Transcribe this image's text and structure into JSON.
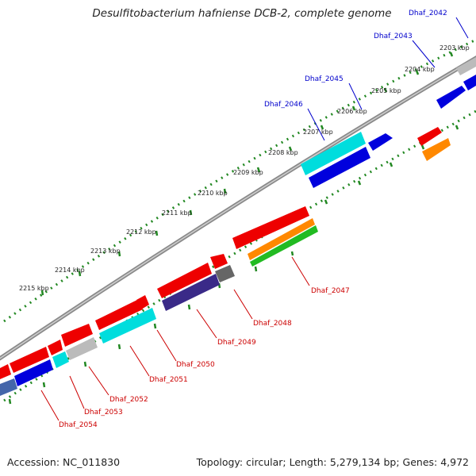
{
  "title": "Desulfitobacterium hafniense DCB-2, complete genome",
  "footer": {
    "accession": "Accession: NC_011830",
    "topology": "Topology: circular; Length: 5,279,134 bp; Genes: 4,972"
  },
  "ticks": [
    "2203 kbp",
    "2204 kbp",
    "2205 kbp",
    "2206 kbp",
    "2207 kbp",
    "2208 kbp",
    "2209 kbp",
    "2210 kbp",
    "2211 kbp",
    "2212 kbp",
    "2213 kbp",
    "2214 kbp",
    "2215 kbp"
  ],
  "genes_top": [
    "Dhaf_2042",
    "Dhaf_2043",
    "Dhaf_2045",
    "Dhaf_2046"
  ],
  "genes_bottom": [
    "Dhaf_2047",
    "Dhaf_2048",
    "Dhaf_2049",
    "Dhaf_2050",
    "Dhaf_2051",
    "Dhaf_2052",
    "Dhaf_2053",
    "Dhaf_2054"
  ],
  "colors": {
    "top_label": "#0000cc",
    "bottom_label": "#cc0000",
    "tick": "#228822",
    "backbone": "#808080",
    "red": "#ee0000",
    "blue": "#0000dd",
    "cyan": "#00dddd",
    "gray": "#bbbbbb",
    "orange": "#ff8800",
    "green": "#22bb22",
    "navy": "#3a2a88",
    "darkgray": "#666666",
    "steel": "#4466aa"
  }
}
